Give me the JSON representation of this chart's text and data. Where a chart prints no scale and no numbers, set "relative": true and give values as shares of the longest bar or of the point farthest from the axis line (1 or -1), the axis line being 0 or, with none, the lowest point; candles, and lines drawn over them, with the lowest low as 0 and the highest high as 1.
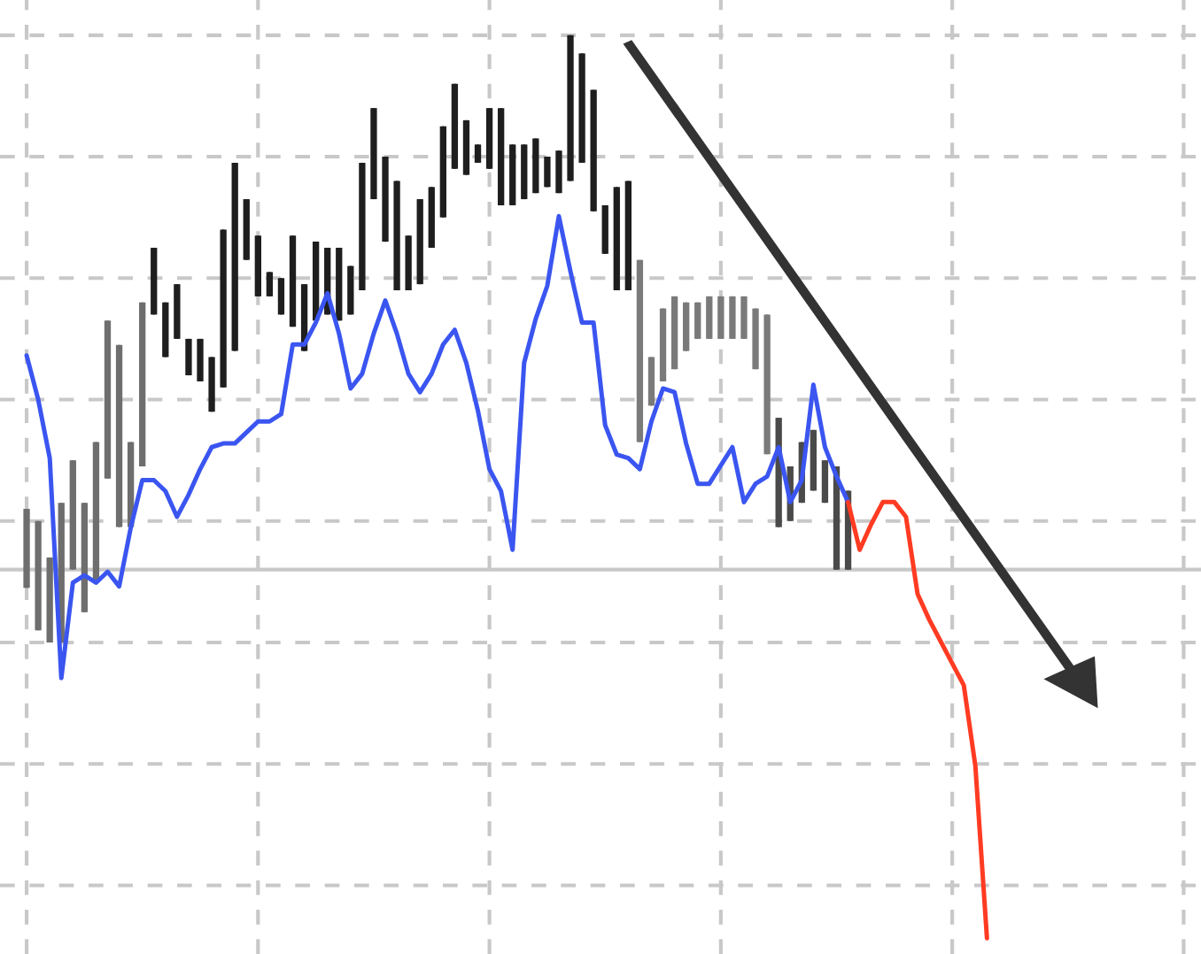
{
  "chart_data": [
    {
      "type": "candlestick",
      "relative": true,
      "grid": true,
      "ref_lines": [
        {
          "axis": "y",
          "value": 0.12,
          "color": "#c8c8c8",
          "line_style": "solid"
        }
      ],
      "categories": [
        null,
        null,
        null,
        null,
        null,
        null,
        null,
        null,
        null,
        null,
        null,
        null,
        null,
        null,
        null,
        null,
        null,
        null,
        null,
        null,
        null,
        null,
        null,
        null,
        null,
        null,
        null,
        null,
        null,
        null,
        null,
        null,
        null,
        null,
        null,
        null,
        null,
        null,
        null,
        null,
        null,
        null,
        null,
        null,
        null,
        null,
        null,
        null,
        null,
        null,
        null,
        null,
        null,
        null,
        null,
        null,
        null,
        null,
        null,
        null,
        null,
        null,
        null,
        null,
        null,
        null,
        null,
        null,
        null,
        null,
        null,
        null
      ],
      "ohlc": [
        [
          0.09,
          0.22,
          0.09,
          0.22
        ],
        [
          0.02,
          0.2,
          0.02,
          0.2
        ],
        [
          0.0,
          0.14,
          0.0,
          0.14
        ],
        [
          0.0,
          0.23,
          0.0,
          0.23
        ],
        [
          0.12,
          0.3,
          0.12,
          0.3
        ],
        [
          0.05,
          0.23,
          0.05,
          0.23
        ],
        [
          0.1,
          0.33,
          0.1,
          0.33
        ],
        [
          0.27,
          0.53,
          0.27,
          0.53
        ],
        [
          0.19,
          0.49,
          0.19,
          0.49
        ],
        [
          0.19,
          0.33,
          0.19,
          0.33
        ],
        [
          0.29,
          0.56,
          0.29,
          0.56
        ],
        [
          0.54,
          0.65,
          0.54,
          0.65
        ],
        [
          0.47,
          0.56,
          0.47,
          0.56
        ],
        [
          0.5,
          0.59,
          0.5,
          0.59
        ],
        [
          0.44,
          0.5,
          0.44,
          0.5
        ],
        [
          0.43,
          0.5,
          0.43,
          0.5
        ],
        [
          0.38,
          0.47,
          0.38,
          0.47
        ],
        [
          0.42,
          0.68,
          0.42,
          0.68
        ],
        [
          0.48,
          0.79,
          0.48,
          0.79
        ],
        [
          0.63,
          0.73,
          0.63,
          0.73
        ],
        [
          0.57,
          0.67,
          0.57,
          0.67
        ],
        [
          0.57,
          0.61,
          0.57,
          0.61
        ],
        [
          0.54,
          0.6,
          0.54,
          0.6
        ],
        [
          0.52,
          0.67,
          0.52,
          0.67
        ],
        [
          0.48,
          0.59,
          0.48,
          0.59
        ],
        [
          0.53,
          0.66,
          0.53,
          0.66
        ],
        [
          0.54,
          0.65,
          0.54,
          0.65
        ],
        [
          0.53,
          0.65,
          0.53,
          0.65
        ],
        [
          0.54,
          0.62,
          0.54,
          0.62
        ],
        [
          0.58,
          0.79,
          0.58,
          0.79
        ],
        [
          0.73,
          0.88,
          0.73,
          0.88
        ],
        [
          0.66,
          0.8,
          0.66,
          0.8
        ],
        [
          0.58,
          0.76,
          0.58,
          0.76
        ],
        [
          0.58,
          0.67,
          0.58,
          0.67
        ],
        [
          0.59,
          0.73,
          0.59,
          0.73
        ],
        [
          0.65,
          0.75,
          0.65,
          0.75
        ],
        [
          0.7,
          0.85,
          0.7,
          0.85
        ],
        [
          0.78,
          0.92,
          0.78,
          0.92
        ],
        [
          0.77,
          0.86,
          0.77,
          0.86
        ],
        [
          0.79,
          0.82,
          0.79,
          0.82
        ],
        [
          0.78,
          0.88,
          0.78,
          0.88
        ],
        [
          0.72,
          0.88,
          0.72,
          0.88
        ],
        [
          0.72,
          0.82,
          0.72,
          0.82
        ],
        [
          0.73,
          0.82,
          0.73,
          0.82
        ],
        [
          0.74,
          0.83,
          0.74,
          0.83
        ],
        [
          0.75,
          0.8,
          0.75,
          0.8
        ],
        [
          0.74,
          0.81,
          0.74,
          0.81
        ],
        [
          0.76,
          1.0,
          0.76,
          1.0
        ],
        [
          0.79,
          0.97,
          0.79,
          0.97
        ],
        [
          0.71,
          0.91,
          0.71,
          0.91
        ],
        [
          0.64,
          0.72,
          0.64,
          0.72
        ],
        [
          0.58,
          0.75,
          0.58,
          0.75
        ],
        [
          0.58,
          0.76,
          0.58,
          0.76
        ],
        [
          0.33,
          0.63,
          0.33,
          0.63
        ],
        [
          0.39,
          0.47,
          0.39,
          0.47
        ],
        [
          0.43,
          0.55,
          0.43,
          0.55
        ],
        [
          0.45,
          0.57,
          0.45,
          0.57
        ],
        [
          0.48,
          0.56,
          0.48,
          0.56
        ],
        [
          0.5,
          0.56,
          0.5,
          0.56
        ],
        [
          0.5,
          0.57,
          0.5,
          0.57
        ],
        [
          0.5,
          0.57,
          0.5,
          0.57
        ],
        [
          0.5,
          0.57,
          0.5,
          0.57
        ],
        [
          0.5,
          0.57,
          0.5,
          0.57
        ],
        [
          0.45,
          0.55,
          0.45,
          0.55
        ],
        [
          0.31,
          0.54,
          0.31,
          0.54
        ],
        [
          0.19,
          0.37,
          0.19,
          0.37
        ],
        [
          0.2,
          0.29,
          0.2,
          0.29
        ],
        [
          0.23,
          0.33,
          0.23,
          0.33
        ],
        [
          0.25,
          0.35,
          0.25,
          0.35
        ],
        [
          0.23,
          0.3,
          0.23,
          0.3
        ],
        [
          0.12,
          0.29,
          0.12,
          0.29
        ],
        [
          0.12,
          0.25,
          0.12,
          0.25
        ]
      ],
      "colors": [
        "#6e6e6e",
        "#6e6e6e",
        "#6e6e6e",
        "#6e6e6e",
        "#6e6e6e",
        "#6e6e6e",
        "#6e6e6e",
        "#6e6e6e",
        "#6e6e6e",
        "#6e6e6e",
        "#6e6e6e",
        "#1e1e1e",
        "#1e1e1e",
        "#1e1e1e",
        "#1e1e1e",
        "#1e1e1e",
        "#1e1e1e",
        "#1e1e1e",
        "#1e1e1e",
        "#1e1e1e",
        "#1e1e1e",
        "#1e1e1e",
        "#1e1e1e",
        "#1e1e1e",
        "#1e1e1e",
        "#1e1e1e",
        "#1e1e1e",
        "#1e1e1e",
        "#1e1e1e",
        "#1e1e1e",
        "#1e1e1e",
        "#1e1e1e",
        "#1e1e1e",
        "#1e1e1e",
        "#1e1e1e",
        "#1e1e1e",
        "#1e1e1e",
        "#1e1e1e",
        "#1e1e1e",
        "#1e1e1e",
        "#1e1e1e",
        "#1e1e1e",
        "#1e1e1e",
        "#1e1e1e",
        "#1e1e1e",
        "#1e1e1e",
        "#1e1e1e",
        "#1e1e1e",
        "#1e1e1e",
        "#1e1e1e",
        "#1e1e1e",
        "#1e1e1e",
        "#1e1e1e",
        "#7a7a7a",
        "#7a7a7a",
        "#7a7a7a",
        "#7a7a7a",
        "#7a7a7a",
        "#7a7a7a",
        "#7a7a7a",
        "#7a7a7a",
        "#7a7a7a",
        "#7a7a7a",
        "#7a7a7a",
        "#7a7a7a",
        "#4a4a4a",
        "#4a4a4a",
        "#4a4a4a",
        "#4a4a4a",
        "#4a4a4a",
        "#4a4a4a",
        "#4a4a4a"
      ]
    },
    {
      "type": "line",
      "relative": true,
      "categories": [
        null,
        null,
        null,
        null,
        null,
        null,
        null,
        null,
        null,
        null,
        null,
        null,
        null,
        null,
        null,
        null,
        null,
        null,
        null,
        null,
        null,
        null,
        null,
        null,
        null,
        null,
        null,
        null,
        null,
        null,
        null,
        null,
        null,
        null,
        null,
        null,
        null,
        null,
        null,
        null,
        null,
        null,
        null,
        null,
        null,
        null,
        null,
        null,
        null,
        null,
        null,
        null,
        null,
        null,
        null,
        null,
        null,
        null,
        null,
        null,
        null,
        null,
        null,
        null,
        null,
        null,
        null,
        null,
        null,
        null,
        null,
        null,
        null,
        null,
        null,
        null,
        null,
        null,
        null,
        null,
        null,
        null,
        null,
        null
      ],
      "series": [
        {
          "color": "#3a55f0",
          "values": [
            0.59,
            0.47,
            0.31,
            -0.29,
            -0.03,
            -0.01,
            -0.03,
            0.0,
            -0.04,
            0.12,
            0.25,
            0.25,
            0.22,
            0.15,
            0.21,
            0.28,
            0.34,
            0.35,
            0.35,
            0.38,
            0.41,
            0.41,
            0.43,
            0.62,
            0.62,
            0.68,
            0.76,
            0.65,
            0.5,
            0.54,
            0.65,
            0.74,
            0.65,
            0.54,
            0.49,
            0.54,
            0.62,
            0.66,
            0.57,
            0.44,
            0.28,
            0.22,
            0.06,
            0.57,
            0.69,
            0.78,
            0.97,
            0.82,
            0.68,
            0.68,
            0.4,
            0.32,
            0.31,
            0.28,
            0.41,
            0.5,
            0.49,
            0.35,
            0.24,
            0.24,
            0.29,
            0.34,
            0.19,
            0.24,
            0.26,
            0.34,
            0.19,
            0.25,
            0.51,
            0.34,
            0.26,
            0.19,
            null,
            null,
            null,
            null,
            null,
            null,
            null,
            null,
            null,
            null,
            null,
            null
          ]
        },
        {
          "color": "#ff3b22",
          "values": [
            null,
            null,
            null,
            null,
            null,
            null,
            null,
            null,
            null,
            null,
            null,
            null,
            null,
            null,
            null,
            null,
            null,
            null,
            null,
            null,
            null,
            null,
            null,
            null,
            null,
            null,
            null,
            null,
            null,
            null,
            null,
            null,
            null,
            null,
            null,
            null,
            null,
            null,
            null,
            null,
            null,
            null,
            null,
            null,
            null,
            null,
            null,
            null,
            null,
            null,
            null,
            null,
            null,
            null,
            null,
            null,
            null,
            null,
            null,
            null,
            null,
            null,
            null,
            null,
            null,
            null,
            null,
            null,
            null,
            null,
            null,
            0.19,
            0.06,
            0.13,
            0.19,
            0.19,
            0.15,
            -0.06,
            -0.13,
            -0.19,
            -0.25,
            -0.31,
            -0.53,
            -1.0
          ]
        }
      ]
    }
  ]
}
